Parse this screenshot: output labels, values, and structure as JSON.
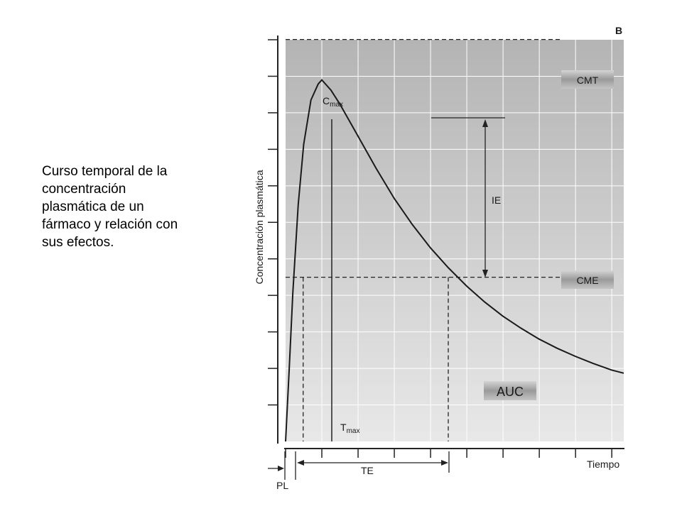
{
  "caption": {
    "lines": [
      "Curso temporal de la",
      "concentración",
      "plasmática de un",
      "fármaco y relación con",
      "sus efectos."
    ]
  },
  "chart_data": {
    "type": "line",
    "panel_letter": "B",
    "title": "",
    "xlabel": "Tiempo",
    "ylabel": "Concentración plasmática",
    "grid": true,
    "series": [
      {
        "name": "",
        "note": "pharmacokinetic curve: rapid rise to Cmax then exponential decay",
        "x": [
          0,
          0.1,
          0.2,
          0.35,
          0.5,
          0.7,
          0.9,
          1.0,
          1.25,
          1.5,
          2.0,
          2.5,
          3.0,
          3.5,
          4.0,
          4.5,
          5.0,
          5.5,
          6.0,
          6.5,
          7.0,
          7.5,
          8.0,
          8.5,
          9.0,
          9.34
        ],
        "y": [
          0,
          1.8,
          3.7,
          5.9,
          7.4,
          8.5,
          8.9,
          9.0,
          8.75,
          8.4,
          7.6,
          6.8,
          6.05,
          5.4,
          4.82,
          4.32,
          3.87,
          3.47,
          3.12,
          2.82,
          2.55,
          2.32,
          2.12,
          1.94,
          1.78,
          1.7
        ]
      }
    ],
    "xlim": [
      0,
      9.34
    ],
    "ylim": [
      0,
      10
    ],
    "y_tick_count": 11,
    "x_tick_count": 10,
    "reference_lines": [
      {
        "label": "CMT",
        "y": 9.0
      },
      {
        "label": "CME",
        "y": 4.0
      }
    ],
    "annotations": {
      "cmax": {
        "main": "C",
        "sub": "max",
        "x": 1.33,
        "y": 9.0
      },
      "tmax": {
        "main": "T",
        "sub": "max",
        "x": 1.26
      },
      "ie": {
        "label": "IE"
      },
      "auc": {
        "label": "AUC"
      },
      "pl": {
        "label": "PL",
        "x": 0.25
      },
      "te": {
        "label": "TE",
        "x_start": 0.25,
        "x_end": 4.5
      }
    },
    "colors": {
      "curve": "#1a1a1a",
      "grid": "#ffffff",
      "background_top": "#b4b4b4",
      "background_bottom": "#e8e8e8",
      "label_box": "#9e9e9e"
    }
  }
}
